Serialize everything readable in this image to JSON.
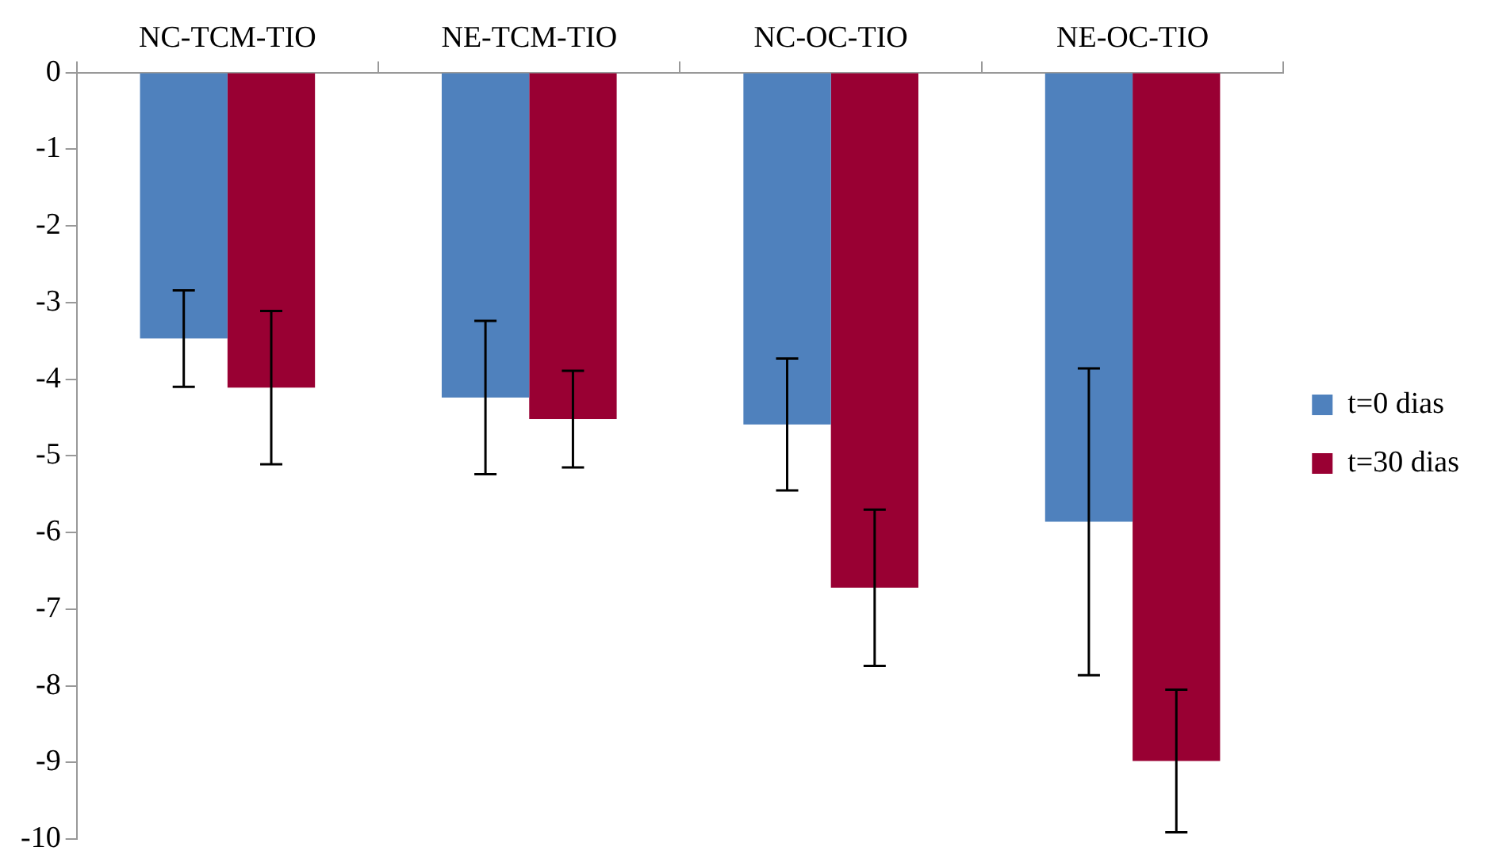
{
  "chart_data": {
    "type": "bar",
    "categories": [
      "NC-TCM-TIO",
      "NE-TCM-TIO",
      "NC-OC-TIO",
      "NE-OC-TIO"
    ],
    "series": [
      {
        "name": "t=0 dias",
        "color": "#4f81bd",
        "values": [
          -3.47,
          -4.24,
          -4.59,
          -5.86
        ],
        "errors": [
          0.63,
          1.0,
          0.86,
          2.0
        ]
      },
      {
        "name": "t=30 dias",
        "color": "#990033",
        "values": [
          -4.11,
          -4.52,
          -6.72,
          -8.98
        ],
        "errors": [
          1.0,
          0.63,
          1.02,
          0.93
        ]
      }
    ],
    "ylim": [
      -10,
      0
    ],
    "yticks": [
      0,
      -1,
      -2,
      -3,
      -4,
      -5,
      -6,
      -7,
      -8,
      -9,
      -10
    ],
    "grid": false,
    "legend": "right"
  }
}
